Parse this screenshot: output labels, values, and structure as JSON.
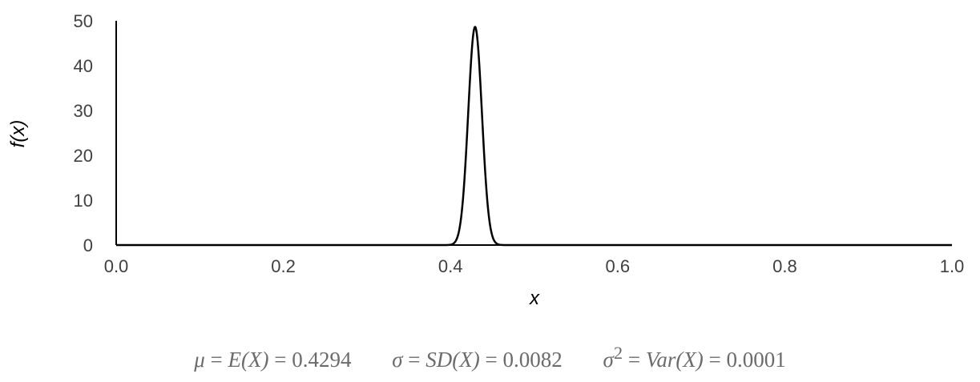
{
  "chart_data": {
    "type": "line",
    "xlabel": "x",
    "ylabel": "f(x)",
    "xlim": [
      0.0,
      1.0
    ],
    "ylim": [
      0,
      50
    ],
    "x_ticks": [
      "0.0",
      "0.2",
      "0.4",
      "0.6",
      "0.8",
      "1.0"
    ],
    "y_ticks": [
      "0",
      "10",
      "20",
      "30",
      "40",
      "50"
    ],
    "grid": false,
    "line_color": "#000000",
    "series": [
      {
        "distribution": "normal",
        "mean": 0.4294,
        "sd": 0.0082,
        "x": [
          0.4,
          0.405,
          0.41,
          0.415,
          0.42,
          0.425,
          0.4294,
          0.435,
          0.44,
          0.445,
          0.45,
          0.455,
          0.46
        ],
        "y": [
          0.1,
          0.6,
          3.0,
          10.0,
          25.0,
          42.0,
          48.7,
          38.0,
          21.0,
          8.0,
          2.0,
          0.3,
          0.05
        ]
      }
    ]
  },
  "stats": {
    "mu": {
      "symbol": "μ",
      "expr": "E(X)",
      "value": "0.4294"
    },
    "sigma": {
      "symbol": "σ",
      "expr": "SD(X)",
      "value": "0.0082"
    },
    "variance": {
      "symbol": "σ",
      "power": "2",
      "expr": "Var(X)",
      "value": "0.0001"
    }
  }
}
